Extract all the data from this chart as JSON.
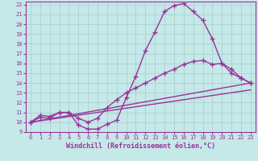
{
  "xlabel": "Windchill (Refroidissement éolien,°C)",
  "bg_color": "#c5e8e8",
  "line_color": "#993399",
  "grid_color": "#a8cccc",
  "xlim": [
    -0.5,
    23.5
  ],
  "ylim": [
    9,
    22.3
  ],
  "xticks": [
    0,
    1,
    2,
    3,
    4,
    5,
    6,
    7,
    8,
    9,
    10,
    11,
    12,
    13,
    14,
    15,
    16,
    17,
    18,
    19,
    20,
    21,
    22,
    23
  ],
  "yticks": [
    9,
    10,
    11,
    12,
    13,
    14,
    15,
    16,
    17,
    18,
    19,
    20,
    21,
    22
  ],
  "line1_x": [
    0,
    1,
    2,
    3,
    4,
    5,
    6,
    7,
    8,
    9,
    10,
    11,
    12,
    13,
    14,
    15,
    16,
    17,
    18,
    19,
    20,
    21,
    22,
    23
  ],
  "line1_y": [
    10.0,
    10.7,
    10.6,
    11.0,
    11.0,
    9.7,
    9.3,
    9.3,
    9.8,
    10.2,
    12.5,
    14.7,
    17.3,
    19.2,
    21.3,
    21.9,
    22.1,
    21.3,
    20.4,
    18.5,
    16.0,
    15.0,
    14.5,
    14.0
  ],
  "line2_x": [
    0,
    1,
    2,
    3,
    4,
    5,
    6,
    7,
    8,
    9,
    10,
    11,
    12,
    13,
    14,
    15,
    16,
    17,
    18,
    19,
    20,
    21,
    22,
    23
  ],
  "line2_y": [
    10.0,
    10.5,
    10.4,
    11.0,
    11.0,
    10.4,
    10.0,
    10.4,
    11.5,
    12.3,
    13.0,
    13.5,
    14.0,
    14.5,
    15.0,
    15.4,
    15.9,
    16.2,
    16.3,
    15.9,
    16.0,
    15.4,
    14.5,
    14.0
  ],
  "line3_x": [
    0,
    23
  ],
  "line3_y": [
    10.0,
    14.0
  ],
  "line4_x": [
    0,
    23
  ],
  "line4_y": [
    10.0,
    13.3
  ],
  "marker": "+",
  "markersize": 4,
  "markeredgewidth": 1.0,
  "linewidth": 1.0,
  "tick_fontsize": 5,
  "label_fontsize": 6
}
